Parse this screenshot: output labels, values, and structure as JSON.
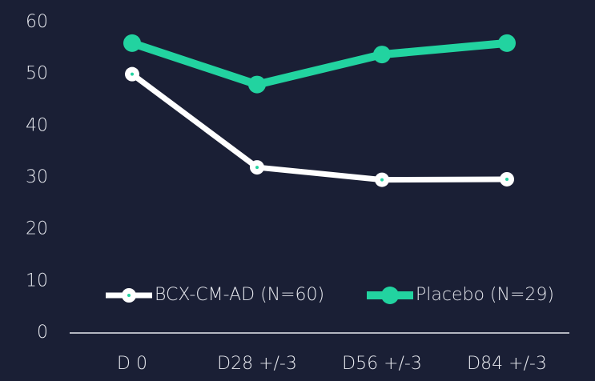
{
  "chart_data": {
    "type": "line",
    "categories": [
      "D 0",
      "D28 +/-3",
      "D56 +/-3",
      "D84 +/-3"
    ],
    "series": [
      {
        "name": "BCX-CM-AD (N=60)",
        "color": "#ffffff",
        "values": [
          50,
          32,
          29.6,
          29.7
        ]
      },
      {
        "name": "Placebo (N=29)",
        "color": "#22d3a0",
        "values": [
          56,
          48,
          53.8,
          56
        ]
      }
    ],
    "ylim": [
      0,
      60
    ],
    "yticks": [
      0,
      10,
      20,
      30,
      40,
      50,
      60
    ],
    "grid": false
  }
}
